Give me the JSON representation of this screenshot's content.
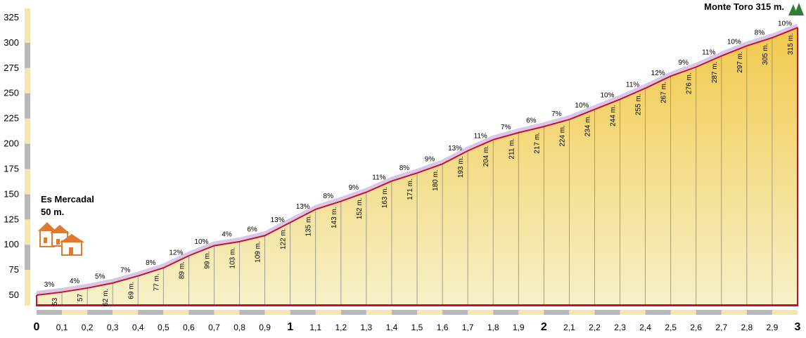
{
  "chart_data": {
    "type": "area",
    "title": "",
    "xlabel": "",
    "ylabel": "",
    "xlim": [
      0,
      3
    ],
    "ylim": [
      50,
      325
    ],
    "y_ticks": [
      "50",
      "75",
      "100",
      "125",
      "150",
      "175",
      "200",
      "225",
      "250",
      "275",
      "300",
      "325"
    ],
    "x_ticks": [
      "0",
      "0,1",
      "0,2",
      "0,3",
      "0,4",
      "0,5",
      "0,6",
      "0,7",
      "0,8",
      "0,9",
      "1",
      "1,1",
      "1,2",
      "1,3",
      "1,4",
      "1,5",
      "1,6",
      "1,7",
      "1,8",
      "1,9",
      "2",
      "2,1",
      "2,2",
      "2,3",
      "2,4",
      "2,5",
      "2,6",
      "2,7",
      "2,8",
      "2,9",
      "3"
    ],
    "x": [
      0,
      0.1,
      0.2,
      0.3,
      0.4,
      0.5,
      0.6,
      0.7,
      0.8,
      0.9,
      1.0,
      1.1,
      1.2,
      1.3,
      1.4,
      1.5,
      1.6,
      1.7,
      1.8,
      1.9,
      2.0,
      2.1,
      2.2,
      2.3,
      2.4,
      2.5,
      2.6,
      2.7,
      2.8,
      2.9,
      3.0
    ],
    "y": [
      50,
      53,
      57,
      62,
      69,
      77,
      89,
      99,
      103,
      109,
      122,
      135,
      143,
      152,
      163,
      171,
      180,
      193,
      204,
      211,
      217,
      224,
      234,
      244,
      255,
      267,
      276,
      287,
      297,
      305,
      315
    ],
    "altitude_labels": [
      "53",
      "57",
      "62 m.",
      "69 m.",
      "77 m.",
      "89 m.",
      "99 m.",
      "103 m.",
      "109 m.",
      "122 m.",
      "135 m.",
      "143 m.",
      "152 m.",
      "163 m.",
      "171 m.",
      "180 m.",
      "193 m.",
      "204 m.",
      "211 m.",
      "217 m.",
      "224 m.",
      "234 m.",
      "244 m.",
      "255 m.",
      "267 m.",
      "276 m.",
      "287 m.",
      "297 m.",
      "305 m.",
      "315 m."
    ],
    "gradients": [
      "3%",
      "4%",
      "5%",
      "7%",
      "8%",
      "12%",
      "10%",
      "4%",
      "6%",
      "13%",
      "13%",
      "8%",
      "9%",
      "11%",
      "8%",
      "9%",
      "13%",
      "11%",
      "7%",
      "6%",
      "7%",
      "10%",
      "10%",
      "11%",
      "12%",
      "9%",
      "11%",
      "10%",
      "8%",
      "10%"
    ],
    "start_label": {
      "line1": "Es Mercadal",
      "line2": "50 m."
    },
    "summit_label": "Monte Toro 315 m.",
    "colors": {
      "profile_line": "#c8102e",
      "fill_top": "#f2c94c",
      "fill_bottom": "#f6f1c8",
      "axis_band_light": "#f5e6b0",
      "axis_band_dark": "#b8b8b8",
      "summit_icon": "#2e7d32",
      "house_icon": "#e07a2e"
    },
    "grid": false,
    "legend": "none"
  }
}
